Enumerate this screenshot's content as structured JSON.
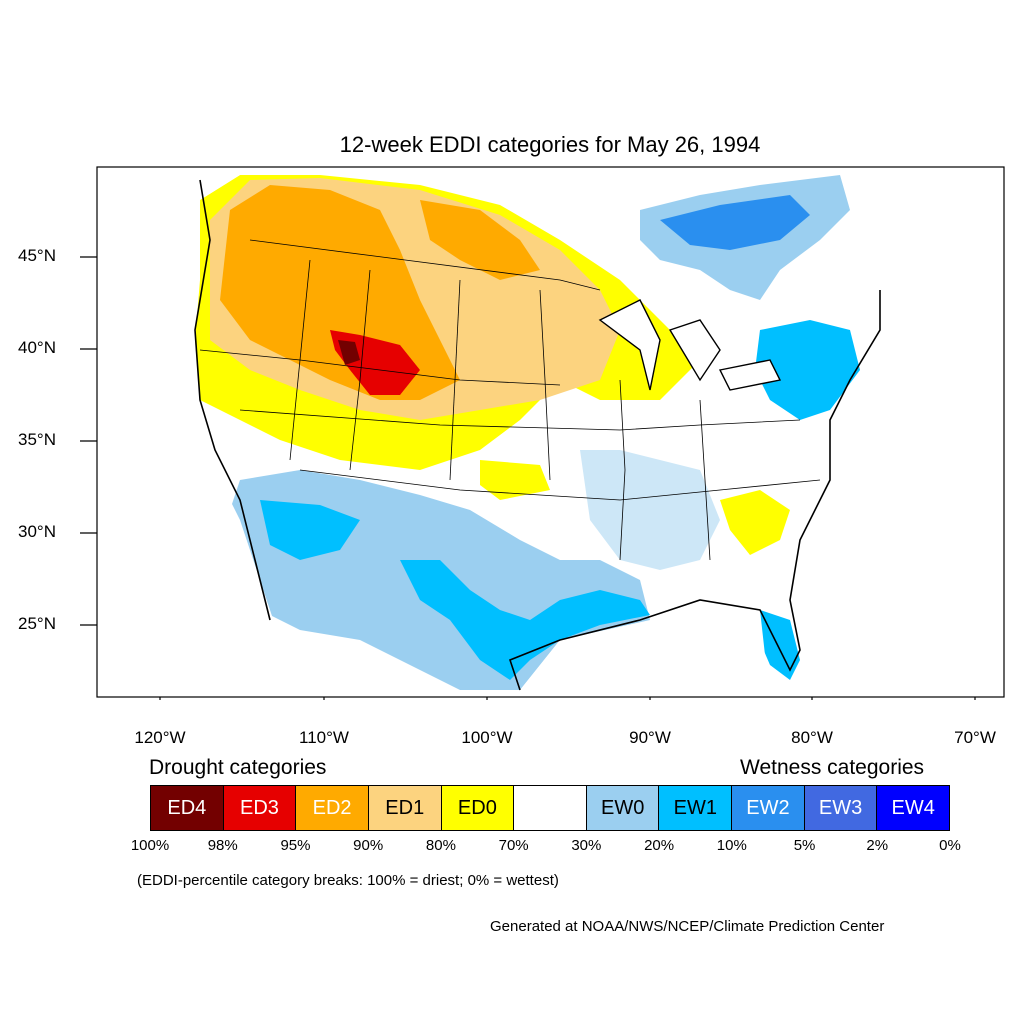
{
  "title": "12-week EDDI categories for May 26, 1994",
  "map": {
    "lat_ticks": [
      "45°N",
      "40°N",
      "35°N",
      "30°N",
      "25°N"
    ],
    "lon_ticks": [
      "120°W",
      "110°W",
      "100°W",
      "90°W",
      "80°W",
      "70°W"
    ]
  },
  "legend": {
    "drought_heading": "Drought categories",
    "wetness_heading": "Wetness categories",
    "categories": [
      {
        "label": "ED4",
        "color": "#730000",
        "text_color": "#ffffff"
      },
      {
        "label": "ED3",
        "color": "#e60000",
        "text_color": "#ffffff"
      },
      {
        "label": "ED2",
        "color": "#ffaa00",
        "text_color": "#ffffff"
      },
      {
        "label": "ED1",
        "color": "#fcd37f",
        "text_color": "#000000"
      },
      {
        "label": "ED0",
        "color": "#ffff00",
        "text_color": "#000000"
      },
      {
        "label": "",
        "color": "#ffffff",
        "text_color": "#000000"
      },
      {
        "label": "EW0",
        "color": "#9bcff0",
        "text_color": "#000000"
      },
      {
        "label": "EW1",
        "color": "#00bfff",
        "text_color": "#000000"
      },
      {
        "label": "EW2",
        "color": "#2a8fef",
        "text_color": "#ffffff"
      },
      {
        "label": "EW3",
        "color": "#4169e1",
        "text_color": "#ffffff"
      },
      {
        "label": "EW4",
        "color": "#0000ff",
        "text_color": "#ffffff"
      }
    ],
    "breaks": [
      "100%",
      "98%",
      "95%",
      "90%",
      "80%",
      "70%",
      "30%",
      "20%",
      "10%",
      "5%",
      "2%",
      "0%"
    ]
  },
  "note": "(EDDI-percentile category breaks: 100% = driest; 0% = wettest)",
  "credit": "Generated at NOAA/NWS/NCEP/Climate Prediction Center"
}
